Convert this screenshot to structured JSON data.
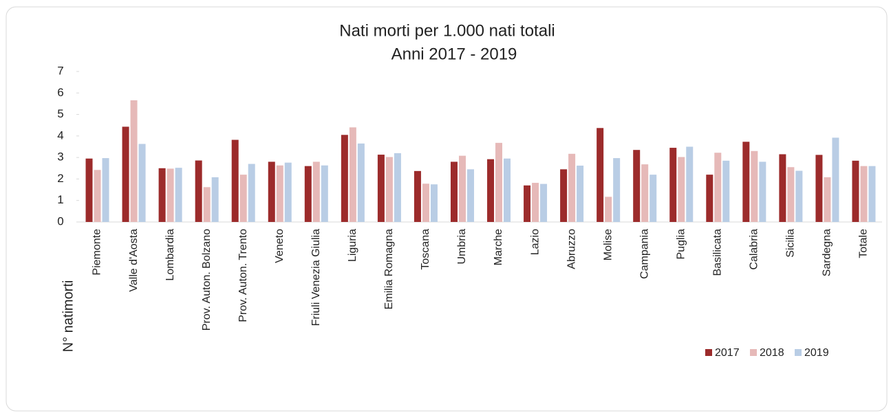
{
  "chart_data": {
    "type": "bar",
    "title": "Nati morti per 1.000 nati totali",
    "subtitle": "Anni 2017 - 2019",
    "y_label": "N° natimorti",
    "categories": [
      "Piemonte",
      "Valle d'Aosta",
      "Lombardia",
      "Prov. Auton. Bolzano",
      "Prov. Auton. Trento",
      "Veneto",
      "Friuli Venezia Giulia",
      "Liguria",
      "Emilia Romagna",
      "Toscana",
      "Umbria",
      "Marche",
      "Lazio",
      "Abruzzo",
      "Molise",
      "Campania",
      "Puglia",
      "Basilicata",
      "Calabria",
      "Sicilia",
      "Sardegna",
      "Totale"
    ],
    "series": [
      {
        "name": "2017",
        "color": "#9c2b2b",
        "values": [
          2.95,
          4.43,
          2.5,
          2.86,
          3.82,
          2.8,
          2.6,
          4.05,
          3.13,
          2.37,
          2.8,
          2.92,
          1.7,
          2.45,
          4.37,
          3.35,
          3.45,
          2.2,
          3.73,
          3.15,
          3.12,
          2.85
        ]
      },
      {
        "name": "2018",
        "color": "#e6b9b8",
        "values": [
          2.42,
          5.66,
          2.48,
          1.62,
          2.2,
          2.63,
          2.8,
          4.4,
          3.02,
          1.78,
          3.08,
          3.68,
          1.82,
          3.17,
          1.17,
          2.68,
          3.02,
          3.22,
          3.3,
          2.55,
          2.08,
          2.6
        ]
      },
      {
        "name": "2019",
        "color": "#b9cde5",
        "values": [
          2.97,
          3.63,
          2.52,
          2.08,
          2.7,
          2.76,
          2.63,
          3.65,
          3.2,
          1.75,
          2.45,
          2.95,
          1.77,
          2.62,
          2.97,
          2.2,
          3.5,
          2.85,
          2.8,
          2.38,
          3.92,
          2.6
        ]
      }
    ],
    "ylim": [
      0,
      7
    ],
    "yticks": [
      0,
      1,
      2,
      3,
      4,
      5,
      6,
      7
    ],
    "grid": false,
    "legend": "bottom-right"
  }
}
